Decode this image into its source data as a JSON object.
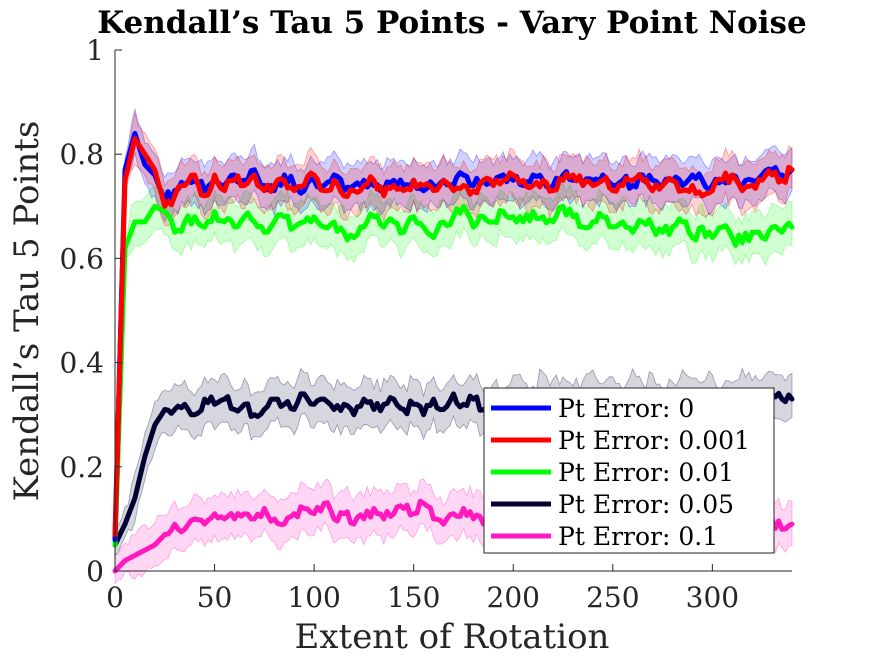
{
  "chart_data": {
    "type": "line",
    "title": "Kendall’s Tau 5 Points - Vary Point Noise",
    "xlabel": "Extent of Rotation",
    "ylabel": "Kendall’s Tau 5 Points",
    "xlim": [
      0,
      340
    ],
    "ylim": [
      0,
      1
    ],
    "xticks": [
      0,
      50,
      100,
      150,
      200,
      250,
      300
    ],
    "yticks": [
      0,
      0.2,
      0.4,
      0.6,
      0.8,
      1
    ],
    "ytick_labels": [
      "0",
      "0.2",
      "0.4",
      "0.6",
      "0.8",
      "1"
    ],
    "grid": false,
    "legend_position": "bottom-right",
    "x": [
      0,
      5,
      10,
      15,
      20,
      25,
      30,
      35,
      40,
      45,
      50,
      55,
      60,
      65,
      70,
      75,
      80,
      85,
      90,
      95,
      100,
      105,
      110,
      115,
      120,
      125,
      130,
      135,
      140,
      145,
      150,
      155,
      160,
      165,
      170,
      175,
      180,
      185,
      190,
      195,
      200,
      205,
      210,
      215,
      220,
      225,
      230,
      235,
      240,
      245,
      250,
      255,
      260,
      265,
      270,
      275,
      280,
      285,
      290,
      295,
      300,
      305,
      310,
      315,
      320,
      325,
      330,
      335,
      340
    ],
    "series": [
      {
        "name": "Pt Error: 0",
        "color": "#0000ff",
        "band_opacity": 0.18,
        "values": [
          0.06,
          0.77,
          0.84,
          0.78,
          0.76,
          0.71,
          0.73,
          0.74,
          0.75,
          0.73,
          0.75,
          0.74,
          0.76,
          0.75,
          0.77,
          0.74,
          0.73,
          0.76,
          0.74,
          0.73,
          0.75,
          0.74,
          0.76,
          0.73,
          0.74,
          0.75,
          0.74,
          0.73,
          0.75,
          0.74,
          0.75,
          0.73,
          0.74,
          0.75,
          0.74,
          0.76,
          0.74,
          0.75,
          0.74,
          0.76,
          0.75,
          0.74,
          0.76,
          0.75,
          0.74,
          0.76,
          0.75,
          0.74,
          0.75,
          0.76,
          0.74,
          0.75,
          0.74,
          0.76,
          0.75,
          0.74,
          0.75,
          0.74,
          0.76,
          0.75,
          0.74,
          0.75,
          0.76,
          0.74,
          0.75,
          0.76,
          0.77,
          0.76,
          0.77
        ]
      },
      {
        "name": "Pt Error: 0.001",
        "color": "#ff0000",
        "band_opacity": 0.18,
        "values": [
          0.07,
          0.75,
          0.83,
          0.8,
          0.77,
          0.7,
          0.72,
          0.74,
          0.76,
          0.72,
          0.76,
          0.73,
          0.75,
          0.74,
          0.76,
          0.73,
          0.74,
          0.75,
          0.73,
          0.74,
          0.76,
          0.73,
          0.75,
          0.72,
          0.73,
          0.74,
          0.75,
          0.72,
          0.74,
          0.73,
          0.75,
          0.74,
          0.73,
          0.75,
          0.73,
          0.74,
          0.73,
          0.75,
          0.74,
          0.75,
          0.76,
          0.75,
          0.74,
          0.75,
          0.73,
          0.75,
          0.76,
          0.74,
          0.74,
          0.75,
          0.73,
          0.74,
          0.75,
          0.75,
          0.73,
          0.74,
          0.75,
          0.73,
          0.74,
          0.72,
          0.73,
          0.75,
          0.76,
          0.73,
          0.74,
          0.75,
          0.76,
          0.75,
          0.77
        ]
      },
      {
        "name": "Pt Error: 0.01",
        "color": "#00ff00",
        "band_opacity": 0.18,
        "values": [
          0.05,
          0.62,
          0.67,
          0.67,
          0.7,
          0.69,
          0.65,
          0.67,
          0.68,
          0.66,
          0.69,
          0.67,
          0.66,
          0.68,
          0.67,
          0.65,
          0.67,
          0.68,
          0.66,
          0.67,
          0.68,
          0.66,
          0.67,
          0.65,
          0.64,
          0.66,
          0.68,
          0.66,
          0.67,
          0.65,
          0.68,
          0.66,
          0.64,
          0.67,
          0.68,
          0.7,
          0.66,
          0.68,
          0.67,
          0.69,
          0.68,
          0.67,
          0.69,
          0.68,
          0.67,
          0.7,
          0.68,
          0.66,
          0.67,
          0.68,
          0.66,
          0.67,
          0.65,
          0.67,
          0.66,
          0.65,
          0.66,
          0.67,
          0.64,
          0.66,
          0.64,
          0.66,
          0.64,
          0.63,
          0.65,
          0.64,
          0.66,
          0.65,
          0.66
        ]
      },
      {
        "name": "Pt Error: 0.05",
        "color": "#000033",
        "band_opacity": 0.16,
        "values": [
          0.05,
          0.09,
          0.14,
          0.22,
          0.28,
          0.31,
          0.31,
          0.32,
          0.3,
          0.33,
          0.32,
          0.33,
          0.31,
          0.32,
          0.3,
          0.31,
          0.33,
          0.32,
          0.31,
          0.34,
          0.32,
          0.33,
          0.31,
          0.32,
          0.3,
          0.33,
          0.31,
          0.32,
          0.33,
          0.31,
          0.32,
          0.3,
          0.33,
          0.31,
          0.34,
          0.32,
          0.33,
          0.31,
          0.32,
          0.3,
          0.33,
          0.32,
          0.31,
          0.34,
          0.32,
          0.33,
          0.31,
          0.32,
          0.34,
          0.32,
          0.33,
          0.31,
          0.34,
          0.32,
          0.33,
          0.31,
          0.32,
          0.34,
          0.33,
          0.32,
          0.33,
          0.31,
          0.32,
          0.34,
          0.33,
          0.32,
          0.34,
          0.33,
          0.33
        ]
      },
      {
        "name": "Pt Error: 0.1",
        "color": "#ff19bf",
        "band_opacity": 0.18,
        "values": [
          0.0,
          0.02,
          0.03,
          0.04,
          0.05,
          0.07,
          0.09,
          0.08,
          0.1,
          0.09,
          0.11,
          0.1,
          0.1,
          0.11,
          0.1,
          0.12,
          0.1,
          0.09,
          0.11,
          0.12,
          0.11,
          0.13,
          0.1,
          0.11,
          0.09,
          0.1,
          0.12,
          0.1,
          0.11,
          0.12,
          0.11,
          0.13,
          0.1,
          0.09,
          0.11,
          0.12,
          0.1,
          0.09,
          0.11,
          0.1,
          0.09,
          0.11,
          0.1,
          0.11,
          0.09,
          0.1,
          0.12,
          0.11,
          0.1,
          0.09,
          0.1,
          0.11,
          0.12,
          0.1,
          0.09,
          0.1,
          0.11,
          0.09,
          0.1,
          0.11,
          0.12,
          0.09,
          0.1,
          0.11,
          0.1,
          0.09,
          0.1,
          0.08,
          0.09
        ]
      }
    ]
  }
}
